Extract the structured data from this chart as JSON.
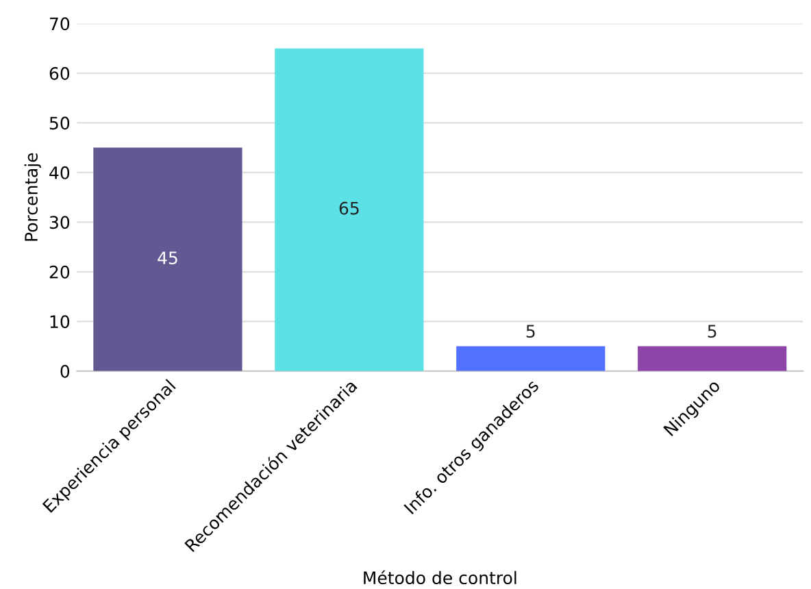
{
  "chart_data": {
    "type": "bar",
    "categories": [
      "Experiencia personal",
      "Recomendación veterinaria",
      "Info. otros ganaderos",
      "Ninguno"
    ],
    "values": [
      45,
      65,
      5,
      5
    ],
    "colors": [
      "#635891",
      "#5ce1e6",
      "#5271ff",
      "#8c44a8"
    ],
    "xlabel": "Método de control",
    "ylabel": "Porcentaje",
    "ylim": [
      0,
      70
    ],
    "yticks": [
      0,
      10,
      20,
      30,
      40,
      50,
      60,
      70
    ],
    "grid": "y",
    "data_labels": true
  }
}
